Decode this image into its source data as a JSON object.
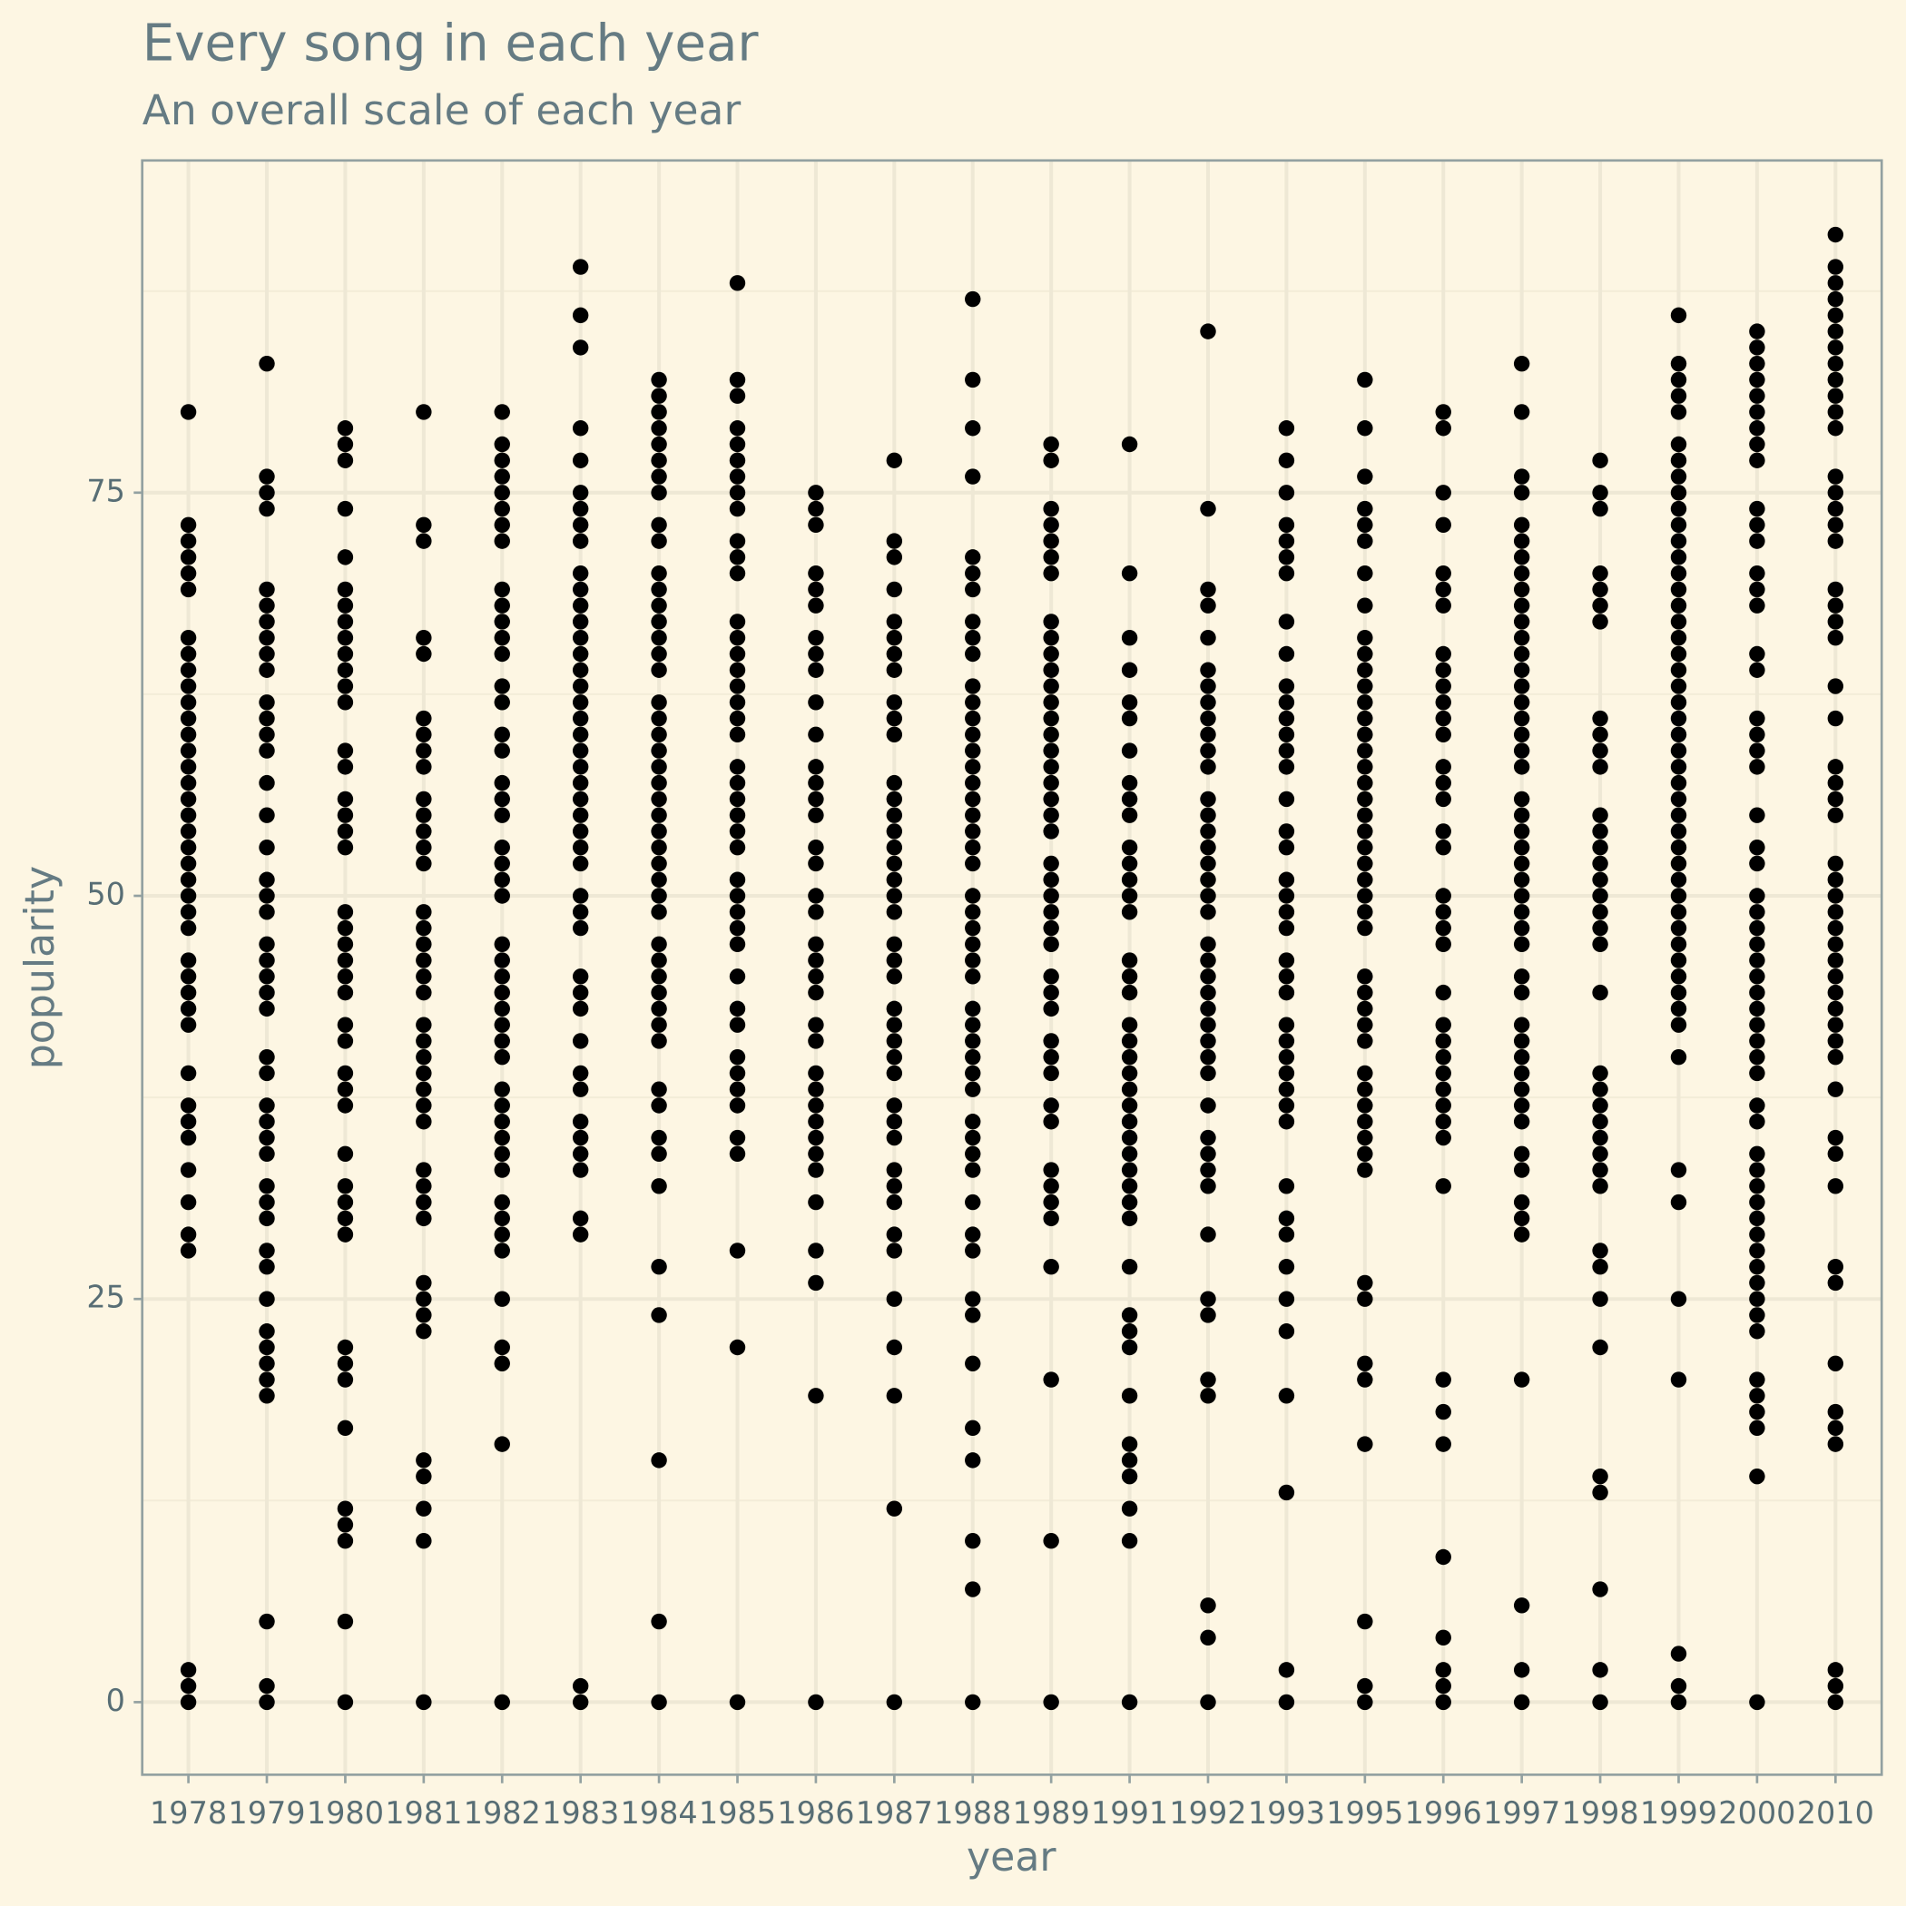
{
  "chart_data": {
    "type": "strip",
    "title": "Every song in each year",
    "subtitle": "An overall scale of each year",
    "x_label": "year",
    "y_label": "popularity",
    "categories": [
      "1978",
      "1979",
      "1980",
      "1981",
      "1982",
      "1983",
      "1984",
      "1985",
      "1986",
      "1987",
      "1988",
      "1989",
      "1991",
      "1992",
      "1993",
      "1995",
      "1996",
      "1997",
      "1998",
      "1999",
      "2000",
      "2010"
    ],
    "values": [
      [
        80,
        73,
        72,
        71,
        70,
        69,
        66,
        65,
        64,
        63,
        62,
        61,
        60,
        59,
        58,
        57,
        56,
        55,
        54,
        53,
        52,
        51,
        50,
        49,
        48,
        46,
        45,
        44,
        43,
        42,
        39,
        37,
        36,
        35,
        33,
        31,
        29,
        28,
        2,
        1,
        0
      ],
      [
        83,
        76,
        75,
        74,
        69,
        68,
        67,
        66,
        65,
        64,
        62,
        61,
        60,
        59,
        57,
        55,
        53,
        51,
        50,
        49,
        47,
        46,
        45,
        44,
        43,
        40,
        39,
        37,
        36,
        35,
        34,
        32,
        31,
        30,
        28,
        27,
        25,
        23,
        22,
        21,
        20,
        19,
        5,
        1,
        0
      ],
      [
        79,
        78,
        77,
        74,
        71,
        69,
        68,
        67,
        66,
        65,
        64,
        63,
        62,
        59,
        58,
        56,
        55,
        54,
        53,
        49,
        48,
        47,
        46,
        45,
        44,
        42,
        41,
        39,
        38,
        37,
        34,
        32,
        31,
        30,
        29,
        22,
        21,
        20,
        17,
        12,
        11,
        10,
        5,
        0
      ],
      [
        80,
        73,
        72,
        66,
        65,
        61,
        60,
        59,
        58,
        56,
        55,
        54,
        53,
        52,
        49,
        48,
        47,
        46,
        45,
        44,
        42,
        41,
        40,
        39,
        38,
        37,
        36,
        33,
        32,
        31,
        30,
        26,
        25,
        24,
        23,
        15,
        14,
        12,
        10,
        0
      ],
      [
        80,
        78,
        77,
        76,
        75,
        74,
        73,
        72,
        69,
        68,
        67,
        66,
        65,
        63,
        62,
        60,
        59,
        57,
        56,
        55,
        53,
        52,
        51,
        50,
        47,
        46,
        45,
        44,
        43,
        42,
        41,
        40,
        38,
        37,
        36,
        35,
        34,
        33,
        31,
        30,
        29,
        28,
        25,
        22,
        21,
        16,
        0
      ],
      [
        89,
        86,
        84,
        79,
        77,
        75,
        74,
        73,
        72,
        70,
        69,
        68,
        67,
        66,
        65,
        64,
        63,
        62,
        61,
        60,
        59,
        58,
        57,
        56,
        55,
        54,
        53,
        52,
        50,
        49,
        48,
        45,
        44,
        43,
        41,
        39,
        38,
        36,
        35,
        34,
        33,
        30,
        29,
        1,
        0
      ],
      [
        82,
        81,
        80,
        79,
        78,
        77,
        76,
        75,
        73,
        72,
        70,
        69,
        68,
        67,
        66,
        65,
        64,
        62,
        61,
        60,
        59,
        58,
        57,
        56,
        55,
        54,
        53,
        52,
        51,
        50,
        49,
        47,
        46,
        45,
        44,
        43,
        42,
        41,
        38,
        37,
        35,
        34,
        32,
        27,
        24,
        15,
        5,
        0
      ],
      [
        88,
        82,
        81,
        79,
        78,
        77,
        76,
        75,
        74,
        72,
        71,
        70,
        67,
        66,
        65,
        64,
        63,
        62,
        61,
        60,
        58,
        57,
        56,
        55,
        54,
        53,
        51,
        50,
        49,
        48,
        47,
        45,
        43,
        42,
        40,
        39,
        38,
        37,
        35,
        34,
        28,
        22,
        0
      ],
      [
        75,
        74,
        73,
        70,
        69,
        68,
        66,
        65,
        64,
        62,
        60,
        58,
        57,
        56,
        55,
        53,
        52,
        50,
        49,
        47,
        46,
        45,
        44,
        42,
        41,
        39,
        38,
        37,
        36,
        35,
        34,
        33,
        31,
        28,
        26,
        19,
        0
      ],
      [
        77,
        72,
        71,
        69,
        67,
        66,
        65,
        64,
        62,
        61,
        60,
        57,
        56,
        55,
        54,
        53,
        52,
        51,
        50,
        49,
        47,
        46,
        45,
        43,
        42,
        41,
        40,
        39,
        37,
        36,
        35,
        33,
        32,
        31,
        29,
        28,
        25,
        22,
        19,
        12,
        0
      ],
      [
        87,
        82,
        79,
        76,
        71,
        70,
        69,
        67,
        66,
        65,
        63,
        62,
        61,
        60,
        59,
        58,
        57,
        56,
        55,
        54,
        53,
        52,
        50,
        49,
        48,
        47,
        46,
        45,
        43,
        42,
        41,
        40,
        39,
        38,
        36,
        35,
        34,
        33,
        31,
        29,
        28,
        25,
        24,
        21,
        17,
        15,
        10,
        7,
        0
      ],
      [
        78,
        77,
        74,
        73,
        72,
        71,
        70,
        67,
        66,
        65,
        64,
        63,
        62,
        61,
        60,
        59,
        58,
        57,
        56,
        55,
        54,
        52,
        51,
        50,
        49,
        48,
        47,
        45,
        44,
        43,
        41,
        40,
        39,
        37,
        36,
        33,
        32,
        31,
        30,
        27,
        20,
        10,
        0
      ],
      [
        78,
        70,
        66,
        64,
        62,
        61,
        59,
        57,
        56,
        55,
        53,
        52,
        51,
        50,
        49,
        46,
        45,
        44,
        42,
        41,
        40,
        39,
        38,
        37,
        36,
        35,
        34,
        33,
        32,
        31,
        30,
        27,
        24,
        23,
        22,
        19,
        16,
        15,
        14,
        12,
        10,
        0
      ],
      [
        85,
        74,
        69,
        68,
        66,
        64,
        63,
        62,
        61,
        60,
        59,
        58,
        56,
        55,
        54,
        53,
        52,
        51,
        50,
        49,
        47,
        46,
        45,
        44,
        43,
        42,
        41,
        40,
        39,
        37,
        35,
        34,
        33,
        32,
        29,
        25,
        24,
        20,
        19,
        6,
        4,
        0
      ],
      [
        79,
        77,
        75,
        73,
        72,
        71,
        70,
        67,
        65,
        63,
        62,
        61,
        60,
        59,
        58,
        56,
        54,
        53,
        51,
        50,
        49,
        48,
        46,
        45,
        44,
        42,
        41,
        40,
        39,
        38,
        37,
        36,
        32,
        30,
        29,
        27,
        25,
        23,
        19,
        13,
        2,
        0
      ],
      [
        82,
        79,
        76,
        74,
        73,
        72,
        70,
        68,
        66,
        65,
        64,
        63,
        62,
        61,
        60,
        59,
        58,
        57,
        56,
        55,
        54,
        53,
        52,
        51,
        50,
        49,
        48,
        45,
        44,
        43,
        42,
        41,
        39,
        38,
        37,
        36,
        35,
        34,
        33,
        26,
        25,
        21,
        20,
        16,
        5,
        1,
        0
      ],
      [
        80,
        79,
        75,
        73,
        70,
        69,
        68,
        65,
        64,
        63,
        62,
        61,
        60,
        58,
        57,
        56,
        54,
        53,
        50,
        49,
        48,
        47,
        44,
        42,
        41,
        40,
        39,
        38,
        37,
        36,
        35,
        32,
        20,
        18,
        16,
        9,
        4,
        2,
        1,
        0
      ],
      [
        83,
        80,
        76,
        75,
        73,
        72,
        71,
        70,
        69,
        68,
        67,
        66,
        65,
        64,
        63,
        62,
        61,
        60,
        59,
        58,
        56,
        55,
        54,
        53,
        52,
        51,
        50,
        49,
        48,
        47,
        45,
        44,
        42,
        41,
        40,
        39,
        38,
        37,
        36,
        34,
        33,
        31,
        30,
        29,
        20,
        6,
        2,
        0
      ],
      [
        77,
        75,
        74,
        70,
        69,
        68,
        67,
        61,
        60,
        59,
        58,
        55,
        54,
        53,
        52,
        51,
        50,
        49,
        48,
        47,
        44,
        39,
        38,
        37,
        36,
        35,
        34,
        33,
        32,
        28,
        27,
        25,
        22,
        14,
        13,
        7,
        2,
        0
      ],
      [
        86,
        83,
        82,
        81,
        80,
        78,
        77,
        76,
        75,
        74,
        73,
        72,
        71,
        70,
        69,
        68,
        67,
        66,
        65,
        64,
        63,
        62,
        61,
        60,
        59,
        58,
        57,
        56,
        55,
        54,
        53,
        52,
        51,
        50,
        49,
        48,
        47,
        46,
        45,
        44,
        43,
        42,
        40,
        33,
        31,
        25,
        20,
        3,
        1,
        0
      ],
      [
        85,
        84,
        83,
        82,
        81,
        80,
        79,
        78,
        77,
        74,
        73,
        72,
        70,
        69,
        68,
        65,
        64,
        61,
        60,
        59,
        58,
        55,
        53,
        52,
        50,
        49,
        48,
        47,
        46,
        45,
        44,
        43,
        42,
        41,
        40,
        39,
        37,
        36,
        34,
        33,
        32,
        31,
        30,
        29,
        28,
        27,
        26,
        25,
        24,
        23,
        20,
        19,
        18,
        17,
        14,
        0
      ],
      [
        91,
        89,
        88,
        87,
        86,
        85,
        84,
        83,
        82,
        81,
        80,
        79,
        76,
        75,
        74,
        73,
        72,
        69,
        68,
        67,
        66,
        63,
        61,
        58,
        57,
        56,
        55,
        52,
        51,
        50,
        49,
        48,
        47,
        46,
        45,
        44,
        43,
        42,
        41,
        40,
        38,
        35,
        34,
        32,
        27,
        26,
        21,
        18,
        17,
        16,
        2,
        1,
        0
      ]
    ],
    "color": "#000000",
    "ylim": [
      -4.5,
      95.6
    ],
    "yticks": [
      0,
      25,
      50,
      75
    ],
    "minor_yticks": [
      12.5,
      37.5,
      62.5,
      87.5
    ],
    "grid": true
  }
}
